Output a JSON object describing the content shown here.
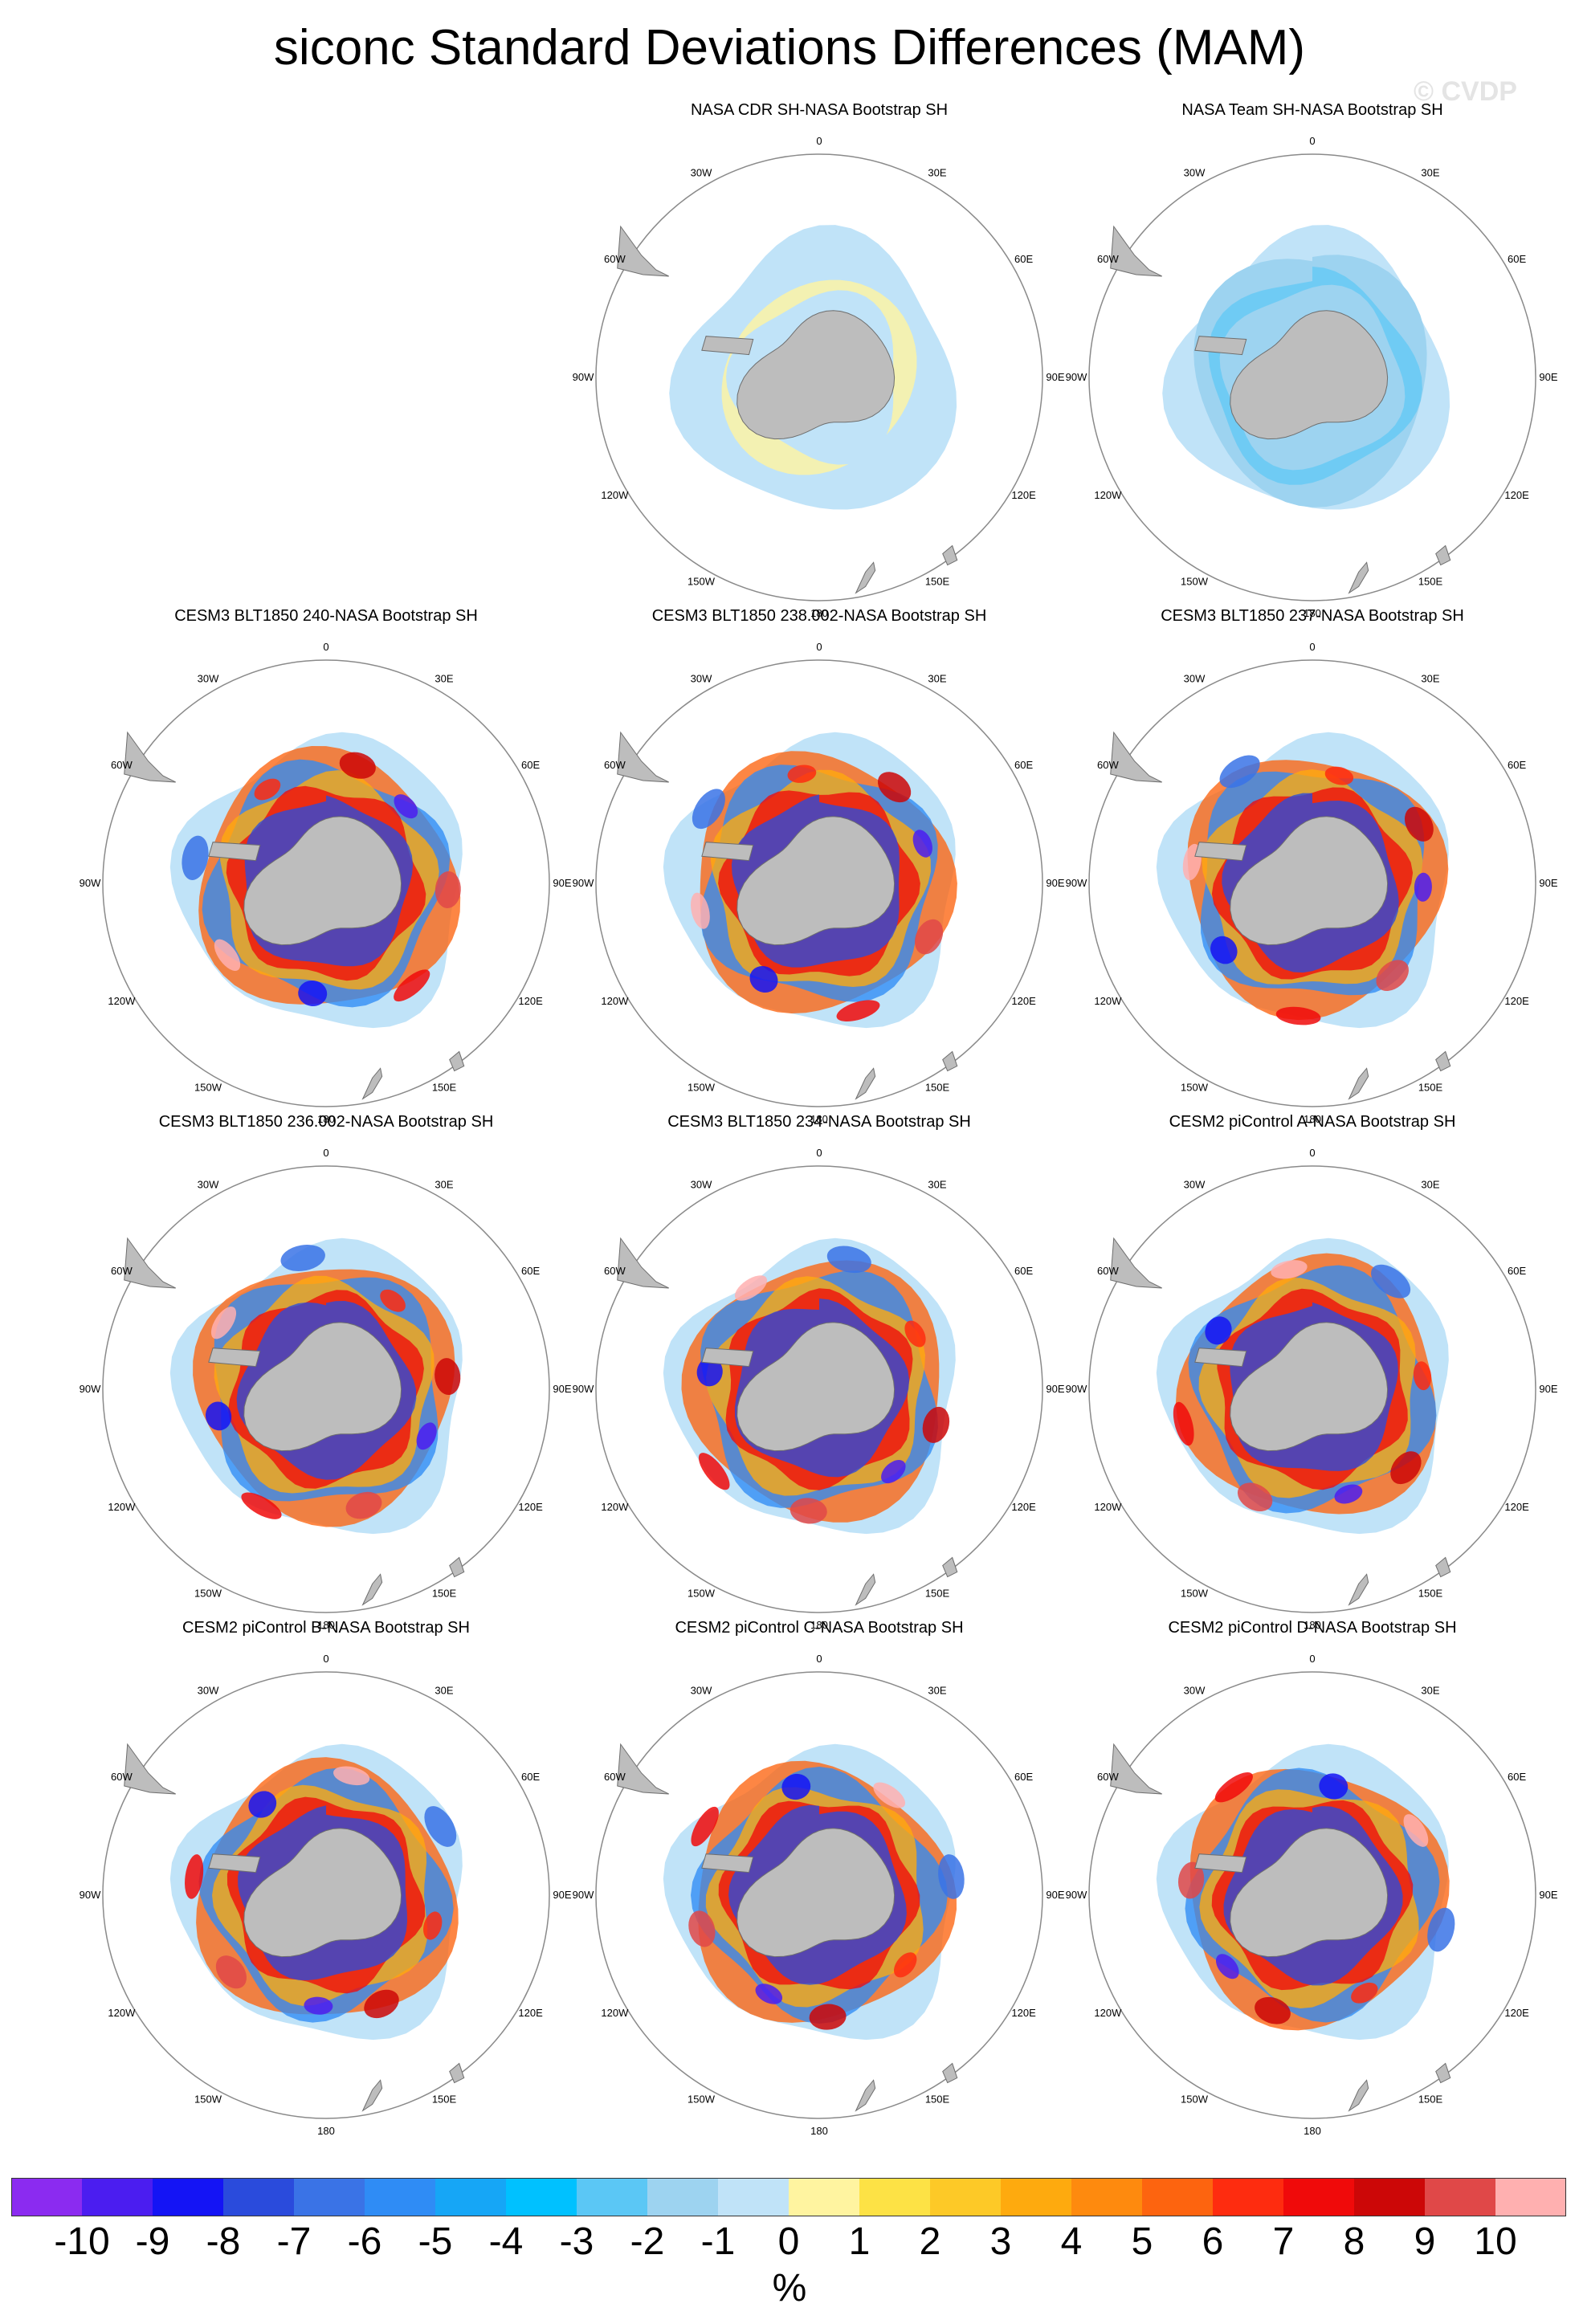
{
  "title": "siconc Standard Deviations Differences (MAM)",
  "watermark": "© CVDP",
  "longitude_labels": [
    {
      "text": "0",
      "lon": 0
    },
    {
      "text": "30E",
      "lon": 30
    },
    {
      "text": "60E",
      "lon": 60
    },
    {
      "text": "90E",
      "lon": 90
    },
    {
      "text": "120E",
      "lon": 120
    },
    {
      "text": "150E",
      "lon": 150
    },
    {
      "text": "180",
      "lon": 180
    },
    {
      "text": "150W",
      "lon": 210
    },
    {
      "text": "120W",
      "lon": 240
    },
    {
      "text": "90W",
      "lon": 270
    },
    {
      "text": "60W",
      "lon": 300
    },
    {
      "text": "30W",
      "lon": 330
    }
  ],
  "panels": [
    {
      "title": "NASA CDR SH-NASA Bootstrap SH",
      "row": 0,
      "col": 1,
      "style": "cdr"
    },
    {
      "title": "NASA Team SH-NASA Bootstrap SH",
      "row": 0,
      "col": 2,
      "style": "team"
    },
    {
      "title": "CESM3 BLT1850 240-NASA Bootstrap SH",
      "row": 1,
      "col": 0,
      "style": "model"
    },
    {
      "title": "CESM3 BLT1850 238.002-NASA Bootstrap SH",
      "row": 1,
      "col": 1,
      "style": "model"
    },
    {
      "title": "CESM3 BLT1850 237-NASA Bootstrap SH",
      "row": 1,
      "col": 2,
      "style": "model"
    },
    {
      "title": "CESM3 BLT1850 236.002-NASA Bootstrap SH",
      "row": 2,
      "col": 0,
      "style": "model"
    },
    {
      "title": "CESM3 BLT1850 234-NASA Bootstrap SH",
      "row": 2,
      "col": 1,
      "style": "model"
    },
    {
      "title": "CESM2 piControl A-NASA Bootstrap SH",
      "row": 2,
      "col": 2,
      "style": "model"
    },
    {
      "title": "CESM2 piControl B-NASA Bootstrap SH",
      "row": 3,
      "col": 0,
      "style": "model"
    },
    {
      "title": "CESM2 piControl C-NASA Bootstrap SH",
      "row": 3,
      "col": 1,
      "style": "model"
    },
    {
      "title": "CESM2 piControl D-NASA Bootstrap SH",
      "row": 3,
      "col": 2,
      "style": "model"
    }
  ],
  "colorbar": {
    "colors": [
      "#8b2bf0",
      "#4b1df0",
      "#1414f5",
      "#2a4bdc",
      "#3a73e6",
      "#2f8cf5",
      "#16a6f6",
      "#00c1ff",
      "#5bc7f5",
      "#9dd3f0",
      "#c0e3f8",
      "#fff4a0",
      "#fde245",
      "#fdc927",
      "#feaa0e",
      "#fe8a0e",
      "#fd640f",
      "#fe2c0f",
      "#f00a0a",
      "#cc0707",
      "#e04848",
      "#ffb0b0"
    ],
    "labels": [
      "-10",
      "-9",
      "-8",
      "-7",
      "-6",
      "-5",
      "-4",
      "-3",
      "-2",
      "-1",
      "0",
      "1",
      "2",
      "3",
      "4",
      "5",
      "6",
      "7",
      "8",
      "9",
      "10"
    ],
    "units": "%"
  }
}
